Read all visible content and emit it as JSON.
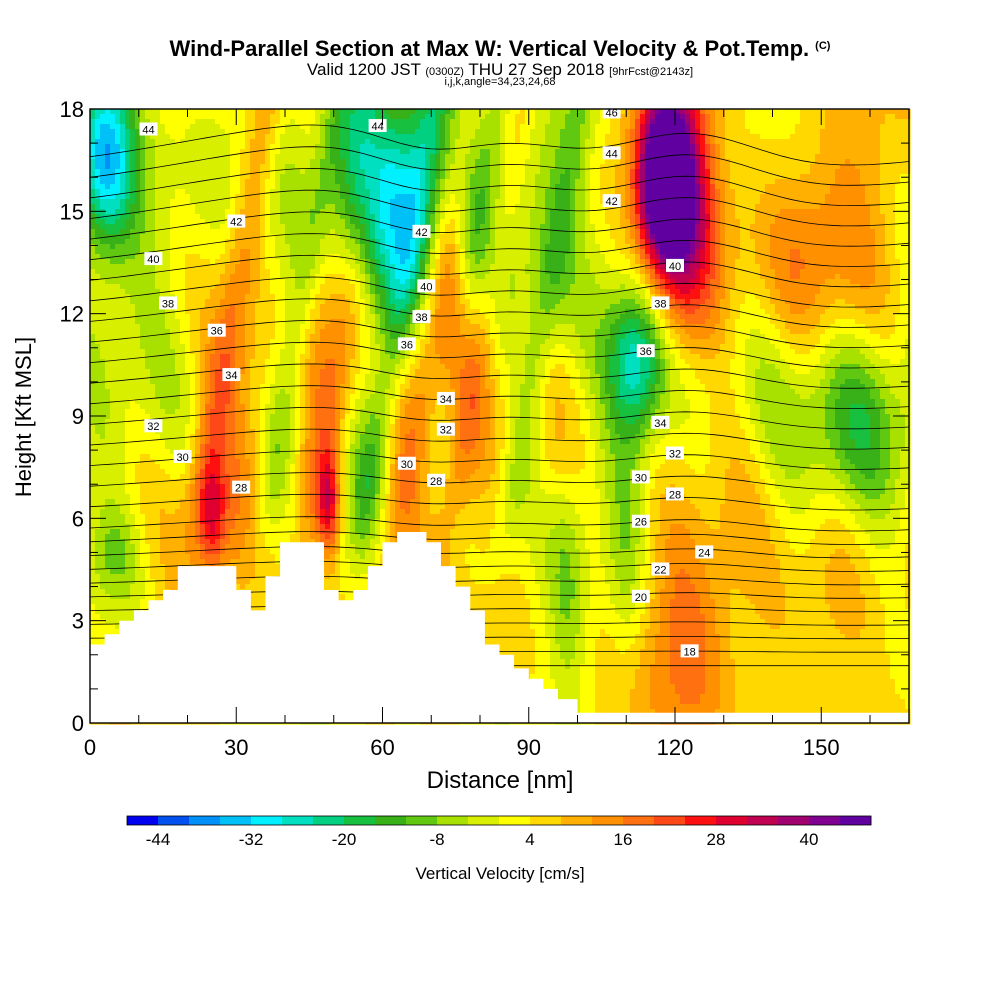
{
  "title": "Wind-Parallel Section at Max W: Vertical Velocity & Pot.Temp.",
  "title_mark": "(C)",
  "subtitle": {
    "valid": "Valid 1200 JST",
    "utc": "(0300Z)",
    "date": "THU 27 Sep 2018",
    "forecast": "[9hrFcst@2143z]"
  },
  "indices": "i,j,k,angle=34,23,24,68",
  "chart_data": {
    "type": "heatmap",
    "xlabel": "Distance [nm]",
    "ylabel": "Height [Kft MSL]",
    "xlim": [
      0,
      168
    ],
    "ylim": [
      0,
      18
    ],
    "x_ticks": [
      0,
      30,
      60,
      90,
      120,
      150
    ],
    "y_ticks": [
      0,
      3,
      6,
      9,
      12,
      15,
      18
    ],
    "colorbar": {
      "title": "Vertical Velocity [cm/s]",
      "min": -48,
      "max": 48,
      "step": 4,
      "tick_values": [
        -44,
        -32,
        -20,
        -8,
        4,
        16,
        28,
        40
      ],
      "tick_labels": [
        "-44",
        "-32",
        "-20",
        "-8",
        "4",
        "16",
        "28",
        "40"
      ],
      "colors": [
        "#0000f0",
        "#0050f0",
        "#0090f8",
        "#00c0f8",
        "#00f0ff",
        "#00e0c0",
        "#00d080",
        "#18c040",
        "#38b018",
        "#60c810",
        "#a8e000",
        "#d8f000",
        "#ffff00",
        "#ffd800",
        "#ffb000",
        "#ff9000",
        "#ff7010",
        "#ff4818",
        "#ff1010",
        "#e00030",
        "#c00050",
        "#a00070",
        "#800090",
        "#6000a0"
      ]
    },
    "terrain": [
      [
        0,
        2.3
      ],
      [
        3,
        2.3
      ],
      [
        3,
        2.6
      ],
      [
        6,
        2.6
      ],
      [
        6,
        3
      ],
      [
        9,
        3
      ],
      [
        9,
        3.3
      ],
      [
        12,
        3.3
      ],
      [
        12,
        3.6
      ],
      [
        15,
        3.6
      ],
      [
        15,
        3.9
      ],
      [
        18,
        3.9
      ],
      [
        18,
        4.6
      ],
      [
        30,
        4.6
      ],
      [
        30,
        3.9
      ],
      [
        33,
        3.9
      ],
      [
        33,
        3.3
      ],
      [
        36,
        3.3
      ],
      [
        36,
        4.3
      ],
      [
        39,
        4.3
      ],
      [
        39,
        5.3
      ],
      [
        48,
        5.3
      ],
      [
        48,
        3.9
      ],
      [
        51,
        3.9
      ],
      [
        51,
        3.6
      ],
      [
        54,
        3.6
      ],
      [
        54,
        3.9
      ],
      [
        57,
        3.9
      ],
      [
        57,
        4.6
      ],
      [
        60,
        4.6
      ],
      [
        60,
        5.3
      ],
      [
        63,
        5.3
      ],
      [
        63,
        5.6
      ],
      [
        69,
        5.6
      ],
      [
        69,
        5.3
      ],
      [
        72,
        5.3
      ],
      [
        72,
        4.6
      ],
      [
        75,
        4.6
      ],
      [
        75,
        4
      ],
      [
        78,
        4
      ],
      [
        78,
        3.3
      ],
      [
        81,
        3.3
      ],
      [
        81,
        2.3
      ],
      [
        84,
        2.3
      ],
      [
        84,
        2
      ],
      [
        87,
        2
      ],
      [
        87,
        1.6
      ],
      [
        90,
        1.6
      ],
      [
        90,
        1.3
      ],
      [
        93,
        1.3
      ],
      [
        93,
        1
      ],
      [
        96,
        1
      ],
      [
        96,
        0.7
      ],
      [
        100,
        0.7
      ],
      [
        100,
        0.3
      ],
      [
        168,
        0.3
      ]
    ],
    "theta_levels": [
      18,
      19,
      20,
      21,
      22,
      23,
      24,
      25,
      26,
      27,
      28,
      29,
      30,
      31,
      32,
      33,
      34,
      35,
      36,
      37,
      38,
      39,
      40,
      41,
      42,
      43,
      44,
      45,
      46
    ],
    "theta_contour_labels": [
      {
        "value": "44",
        "x": 12,
        "y": 17.4
      },
      {
        "value": "44",
        "x": 59,
        "y": 17.5
      },
      {
        "value": "46",
        "x": 107,
        "y": 17.9
      },
      {
        "value": "44",
        "x": 107,
        "y": 16.7
      },
      {
        "value": "42",
        "x": 107,
        "y": 15.3
      },
      {
        "value": "42",
        "x": 30,
        "y": 14.7
      },
      {
        "value": "42",
        "x": 68,
        "y": 14.4
      },
      {
        "value": "40",
        "x": 13,
        "y": 13.6
      },
      {
        "value": "40",
        "x": 69,
        "y": 12.8
      },
      {
        "value": "40",
        "x": 120,
        "y": 13.4
      },
      {
        "value": "38",
        "x": 16,
        "y": 12.3
      },
      {
        "value": "38",
        "x": 68,
        "y": 11.9
      },
      {
        "value": "38",
        "x": 117,
        "y": 12.3
      },
      {
        "value": "36",
        "x": 26,
        "y": 11.5
      },
      {
        "value": "36",
        "x": 65,
        "y": 11.1
      },
      {
        "value": "36",
        "x": 114,
        "y": 10.9
      },
      {
        "value": "34",
        "x": 29,
        "y": 10.2
      },
      {
        "value": "34",
        "x": 73,
        "y": 9.5
      },
      {
        "value": "34",
        "x": 117,
        "y": 8.8
      },
      {
        "value": "32",
        "x": 13,
        "y": 8.7
      },
      {
        "value": "32",
        "x": 73,
        "y": 8.6
      },
      {
        "value": "32",
        "x": 120,
        "y": 7.9
      },
      {
        "value": "30",
        "x": 19,
        "y": 7.8
      },
      {
        "value": "30",
        "x": 65,
        "y": 7.6
      },
      {
        "value": "30",
        "x": 113,
        "y": 7.2
      },
      {
        "value": "28",
        "x": 31,
        "y": 6.9
      },
      {
        "value": "28",
        "x": 71,
        "y": 7.1
      },
      {
        "value": "28",
        "x": 120,
        "y": 6.7
      },
      {
        "value": "26",
        "x": 113,
        "y": 5.9
      },
      {
        "value": "24",
        "x": 126,
        "y": 5
      },
      {
        "value": "22",
        "x": 117,
        "y": 4.5
      },
      {
        "value": "20",
        "x": 113,
        "y": 3.7
      },
      {
        "value": "18",
        "x": 123,
        "y": 2.1
      }
    ],
    "w_features": [
      {
        "x": 3,
        "y": 16.5,
        "value": -30,
        "sx": 4,
        "sy": 1.8
      },
      {
        "x": 5,
        "y": 16,
        "value": -12,
        "sx": 7,
        "sy": 4
      },
      {
        "x": 58,
        "y": 16.5,
        "value": -26,
        "sx": 6,
        "sy": 2.5
      },
      {
        "x": 61,
        "y": 15,
        "value": -18,
        "sx": 8,
        "sy": 3.5
      },
      {
        "x": 80,
        "y": 15.5,
        "value": -14,
        "sx": 7,
        "sy": 2.5
      },
      {
        "x": 100,
        "y": 14.5,
        "value": -10,
        "sx": 10,
        "sy": 2.5
      },
      {
        "x": 112,
        "y": 10.6,
        "value": -22,
        "sx": 4,
        "sy": 1.5
      },
      {
        "x": 113,
        "y": 11,
        "value": -12,
        "sx": 5,
        "sy": 3
      },
      {
        "x": 155,
        "y": 9,
        "value": -12,
        "sx": 10,
        "sy": 2
      },
      {
        "x": 140,
        "y": 10,
        "value": -6,
        "sx": 16,
        "sy": 3
      },
      {
        "x": 98,
        "y": 4,
        "value": -8,
        "sx": 2.5,
        "sy": 2.5
      },
      {
        "x": 110,
        "y": 4.5,
        "value": -6,
        "sx": 2.5,
        "sy": 3
      },
      {
        "x": 5,
        "y": 5,
        "value": -8,
        "sx": 4,
        "sy": 1
      },
      {
        "x": 40,
        "y": 13,
        "value": -10,
        "sx": 4,
        "sy": 3.5
      },
      {
        "x": 118,
        "y": 16,
        "value": 44,
        "sx": 3,
        "sy": 1.2
      },
      {
        "x": 119,
        "y": 15.5,
        "value": 34,
        "sx": 5,
        "sy": 2.5
      },
      {
        "x": 121,
        "y": 14.5,
        "value": 20,
        "sx": 8,
        "sy": 3.5
      },
      {
        "x": 150,
        "y": 14,
        "value": 12,
        "sx": 10,
        "sy": 2.5
      },
      {
        "x": 74,
        "y": 13,
        "value": 14,
        "sx": 3,
        "sy": 2
      },
      {
        "x": 64,
        "y": 10,
        "value": 12,
        "sx": 5,
        "sy": 3.5
      },
      {
        "x": 48,
        "y": 12,
        "value": 12,
        "sx": 4,
        "sy": 4
      },
      {
        "x": 25,
        "y": 6,
        "value": 18,
        "sx": 2,
        "sy": 1.2
      },
      {
        "x": 49,
        "y": 6.5,
        "value": 20,
        "sx": 1.5,
        "sy": 1
      },
      {
        "x": 122,
        "y": 3,
        "value": 12,
        "sx": 8,
        "sy": 2.5
      },
      {
        "x": 150,
        "y": 3,
        "value": 10,
        "sx": 8,
        "sy": 2
      },
      {
        "x": 32,
        "y": 9,
        "value": 8,
        "sx": 6,
        "sy": 3
      }
    ]
  }
}
